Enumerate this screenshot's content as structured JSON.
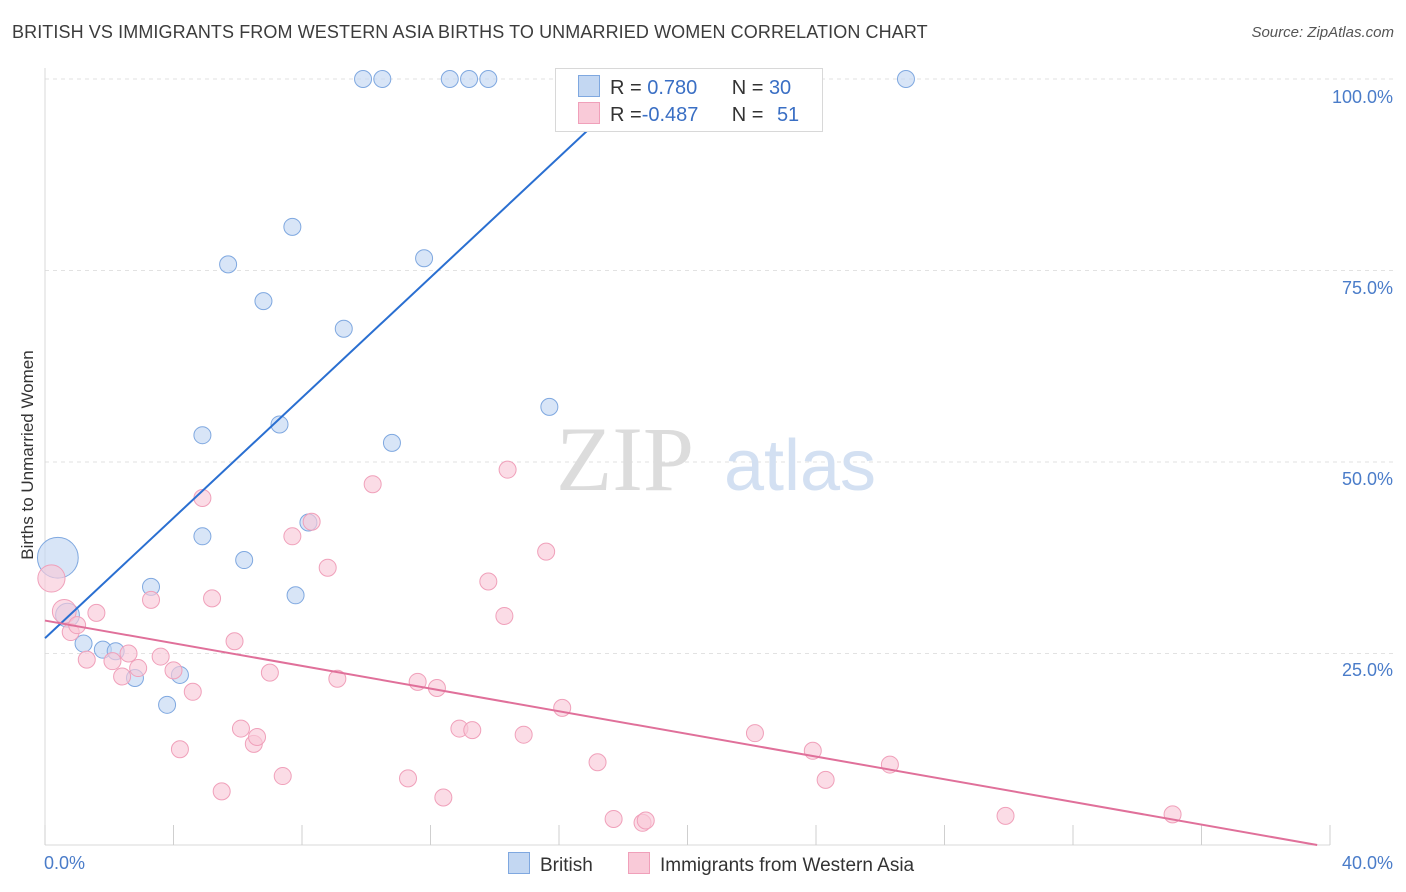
{
  "title": "BRITISH VS IMMIGRANTS FROM WESTERN ASIA BIRTHS TO UNMARRIED WOMEN CORRELATION CHART",
  "source": "Source: ZipAtlas.com",
  "watermark": {
    "zip": "ZIP",
    "atlas": "atlas"
  },
  "legend_box": {
    "rows": [
      {
        "r_label": "R =",
        "r_value": " 0.780",
        "n_label": "N =",
        "n_value": "30"
      },
      {
        "r_label": "R =",
        "r_value": "-0.487",
        "n_label": "N =",
        "n_value": "51"
      }
    ]
  },
  "chart_data": {
    "type": "scatter",
    "title": "BRITISH VS IMMIGRANTS FROM WESTERN ASIA BIRTHS TO UNMARRIED WOMEN CORRELATION CHART",
    "xlabel": "",
    "ylabel": "Births to Unmarried Women",
    "xlim": [
      0,
      40
    ],
    "ylim": [
      0,
      100
    ],
    "x_tick_labels": [
      "0.0%",
      "40.0%"
    ],
    "y_tick_labels": [
      "100.0%",
      "75.0%",
      "50.0%",
      "25.0%"
    ],
    "y_ticks": [
      100,
      75,
      50,
      25
    ],
    "grid": true,
    "legend_position": "top-center",
    "series": [
      {
        "name": "British",
        "color": "#7fa8e0",
        "fill": "#c3d7f2",
        "line_color": "#2a6fd1",
        "r": 0.78,
        "n": 30,
        "trend": {
          "x0": 0,
          "y0": 27,
          "x1": 18.6,
          "y1": 100
        },
        "points": [
          [
            0.4,
            37.5,
            2.4
          ],
          [
            0.7,
            30,
            1.4
          ],
          [
            1.2,
            26.3,
            1
          ],
          [
            1.8,
            25.5,
            1
          ],
          [
            2.2,
            25.3,
            1
          ],
          [
            2.8,
            21.8,
            1
          ],
          [
            3.3,
            33.7,
            1
          ],
          [
            3.8,
            18.3,
            1
          ],
          [
            4.2,
            22.2,
            1
          ],
          [
            4.9,
            53.5,
            1
          ],
          [
            4.9,
            40.3,
            1
          ],
          [
            5.7,
            75.8,
            1
          ],
          [
            6.2,
            37.2,
            1
          ],
          [
            6.8,
            71.0,
            1
          ],
          [
            7.3,
            54.9,
            1
          ],
          [
            7.8,
            32.6,
            1
          ],
          [
            7.7,
            80.7,
            1
          ],
          [
            8.2,
            42.1,
            1
          ],
          [
            9.3,
            67.4,
            1
          ],
          [
            9.9,
            100,
            1
          ],
          [
            10.5,
            100,
            1
          ],
          [
            10.8,
            52.5,
            1
          ],
          [
            11.8,
            76.6,
            1
          ],
          [
            12.6,
            100,
            1
          ],
          [
            13.2,
            100,
            1
          ],
          [
            13.8,
            100,
            1
          ],
          [
            15.7,
            57.2,
            1
          ],
          [
            18.0,
            100,
            1
          ],
          [
            19.1,
            100,
            1
          ],
          [
            26.8,
            100,
            1
          ]
        ]
      },
      {
        "name": "Immigrants from Western Asia",
        "color": "#f0a0ba",
        "fill": "#f9cad8",
        "line_color": "#e0709a",
        "r": -0.487,
        "n": 51,
        "trend": {
          "x0": 0,
          "y0": 29.3,
          "x1": 39.6,
          "y1": 0
        },
        "points": [
          [
            0.2,
            34.8,
            1.6
          ],
          [
            0.6,
            30.5,
            1.4
          ],
          [
            0.8,
            27.8,
            1
          ],
          [
            1.0,
            28.7,
            1
          ],
          [
            1.3,
            24.2,
            1
          ],
          [
            1.6,
            30.3,
            1
          ],
          [
            2.1,
            24.0,
            1
          ],
          [
            2.4,
            22.0,
            1
          ],
          [
            2.6,
            25.0,
            1
          ],
          [
            2.9,
            23.1,
            1
          ],
          [
            3.3,
            32.0,
            1
          ],
          [
            3.6,
            24.6,
            1
          ],
          [
            4.0,
            22.8,
            1
          ],
          [
            4.2,
            12.5,
            1
          ],
          [
            4.6,
            20.0,
            1
          ],
          [
            4.9,
            45.3,
            1
          ],
          [
            5.2,
            32.2,
            1
          ],
          [
            5.5,
            7.0,
            1
          ],
          [
            5.9,
            26.6,
            1
          ],
          [
            6.1,
            15.2,
            1
          ],
          [
            6.5,
            13.2,
            1
          ],
          [
            6.6,
            14.1,
            1
          ],
          [
            7.0,
            22.5,
            1
          ],
          [
            7.4,
            9.0,
            1
          ],
          [
            7.7,
            40.3,
            1
          ],
          [
            8.3,
            42.2,
            1
          ],
          [
            8.8,
            36.2,
            1
          ],
          [
            9.1,
            21.7,
            1
          ],
          [
            10.2,
            47.1,
            1
          ],
          [
            11.3,
            8.7,
            1
          ],
          [
            11.6,
            21.3,
            1
          ],
          [
            12.2,
            20.5,
            1
          ],
          [
            12.4,
            6.2,
            1
          ],
          [
            12.9,
            15.2,
            1
          ],
          [
            13.3,
            15.0,
            1
          ],
          [
            13.8,
            34.4,
            1
          ],
          [
            14.3,
            29.9,
            1
          ],
          [
            14.4,
            49.0,
            1
          ],
          [
            14.9,
            14.4,
            1
          ],
          [
            15.6,
            38.3,
            1
          ],
          [
            16.1,
            17.9,
            1
          ],
          [
            17.2,
            10.8,
            1
          ],
          [
            17.7,
            3.4,
            1
          ],
          [
            18.6,
            2.9,
            1
          ],
          [
            18.7,
            3.2,
            1
          ],
          [
            22.1,
            14.6,
            1
          ],
          [
            23.9,
            12.3,
            1
          ],
          [
            24.3,
            8.5,
            1
          ],
          [
            26.3,
            10.5,
            1
          ],
          [
            29.9,
            3.8,
            1
          ],
          [
            35.1,
            4.0,
            1
          ]
        ]
      }
    ]
  }
}
